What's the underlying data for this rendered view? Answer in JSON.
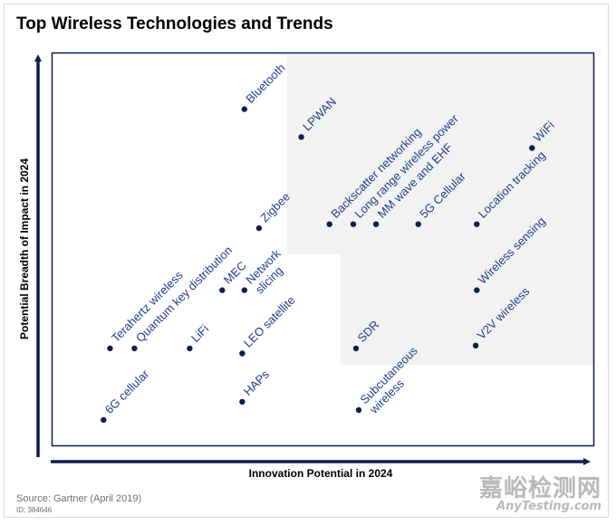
{
  "chart_data": {
    "type": "scatter",
    "title": "Top Wireless Technologies and Trends",
    "xlabel": "Innovation Potential in 2024",
    "ylabel": "Potential Breadth of Impact in 2024",
    "xlim": [
      0,
      100
    ],
    "ylim": [
      0,
      100
    ],
    "grid": false,
    "highlight_region": "upper-right (high innovation potential and high breadth of impact)",
    "points": [
      {
        "label": "Bluetooth",
        "lines": [
          "Bluetooth"
        ],
        "x": 35.5,
        "y": 85.7
      },
      {
        "label": "LPWAN",
        "lines": [
          "LPWAN"
        ],
        "x": 46,
        "y": 78.6
      },
      {
        "label": "WiFi",
        "lines": [
          "WiFi"
        ],
        "x": 88.6,
        "y": 75.8
      },
      {
        "label": "Backscatter networking",
        "lines": [
          "Backscatter networking"
        ],
        "x": 51.2,
        "y": 56.4
      },
      {
        "label": "Long range wireless power",
        "lines": [
          "Long range wireless power"
        ],
        "x": 55.6,
        "y": 56.4
      },
      {
        "label": "MM wave and EHF",
        "lines": [
          "MM wave and EHF"
        ],
        "x": 59.8,
        "y": 56.4
      },
      {
        "label": "5G Cellular",
        "lines": [
          "5G Cellular"
        ],
        "x": 67.6,
        "y": 56.4
      },
      {
        "label": "Location tracking",
        "lines": [
          "Location tracking"
        ],
        "x": 78.4,
        "y": 56.4
      },
      {
        "label": "Zigbee",
        "lines": [
          "Zigbee"
        ],
        "x": 38.2,
        "y": 55.4
      },
      {
        "label": "MEC",
        "lines": [
          "MEC"
        ],
        "x": 31.4,
        "y": 39.6
      },
      {
        "label": "Network slicing",
        "lines": [
          "Network",
          "slicing"
        ],
        "x": 35.5,
        "y": 39.6
      },
      {
        "label": "Wireless sensing",
        "lines": [
          "Wireless sensing"
        ],
        "x": 78.4,
        "y": 39.6
      },
      {
        "label": "Terahertz wireless",
        "lines": [
          "Terahertz wireless"
        ],
        "x": 10.7,
        "y": 24.8
      },
      {
        "label": "Quantum key distribution",
        "lines": [
          "Quantum key distribution"
        ],
        "x": 15.2,
        "y": 24.8
      },
      {
        "label": "LiFi",
        "lines": [
          "LiFi"
        ],
        "x": 25.4,
        "y": 24.8
      },
      {
        "label": "LEO satellite",
        "lines": [
          "LEO satellite"
        ],
        "x": 35.1,
        "y": 23.5
      },
      {
        "label": "SDR",
        "lines": [
          "SDR"
        ],
        "x": 56.1,
        "y": 24.8
      },
      {
        "label": "V2V wireless",
        "lines": [
          "V2V wireless"
        ],
        "x": 78.2,
        "y": 25.5
      },
      {
        "label": "HAPs",
        "lines": [
          "HAPs"
        ],
        "x": 35.1,
        "y": 11.2
      },
      {
        "label": "Subcutaneous wireless",
        "lines": [
          "Subcutaneous",
          "wireless"
        ],
        "x": 56.6,
        "y": 9.1
      },
      {
        "label": "6G cellular",
        "lines": [
          "6G cellular"
        ],
        "x": 9.5,
        "y": 6.6
      }
    ]
  },
  "footer": {
    "source": "Source: Gartner (April 2019)",
    "doc_id": "ID: 384646"
  },
  "watermark": {
    "cn": "嘉峪检测网",
    "en": "AnyTesting.com"
  },
  "colors": {
    "point": "#0f1f4d",
    "label": "#1f3d8a",
    "axis": "#0f1f4d",
    "highlight": "#f2f2f2",
    "plot_border": "#0f1f4d"
  }
}
